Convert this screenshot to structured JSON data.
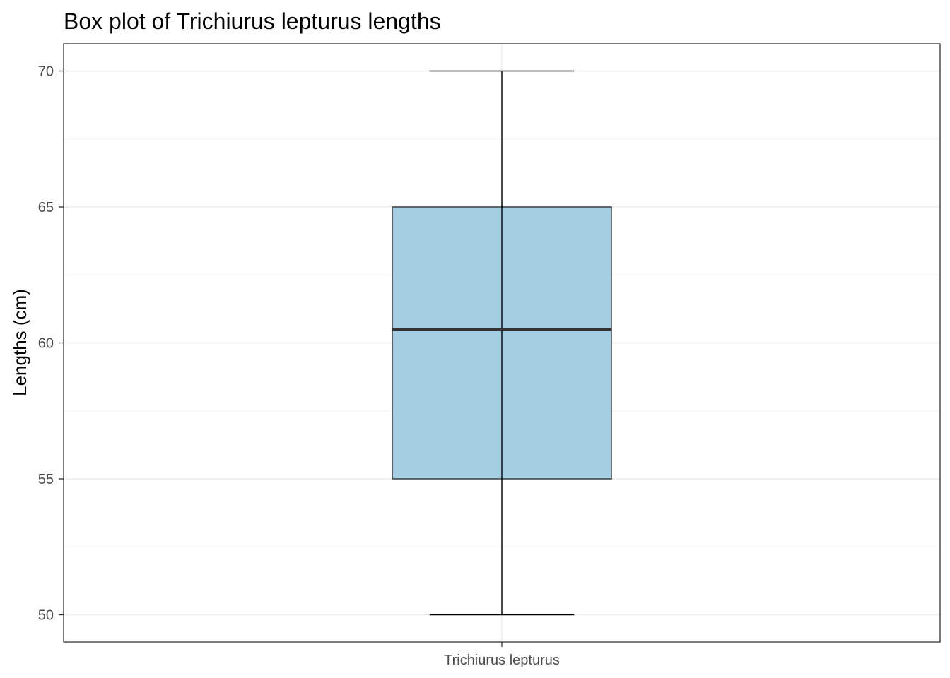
{
  "chart_data": {
    "type": "box",
    "title": "Box plot of Trichiurus lepturus lengths",
    "xlabel": "",
    "ylabel": "Lengths (cm)",
    "categories": [
      "Trichiurus lepturus"
    ],
    "boxes": [
      {
        "category": "Trichiurus lepturus",
        "min": 50,
        "q1": 55,
        "median": 60.5,
        "q3": 65,
        "max": 70
      }
    ],
    "ylim": [
      49,
      71
    ],
    "yticks": [
      50,
      55,
      60,
      65,
      70
    ],
    "grid": true,
    "theme": "bw",
    "colors": {
      "box_fill": "#a6cee3",
      "box_outline": "#333333",
      "whisker": "#000000",
      "median": "#333333",
      "grid_major": "#ebebeb",
      "grid_minor": "#f3f3f3",
      "panel_border": "#333333"
    }
  }
}
